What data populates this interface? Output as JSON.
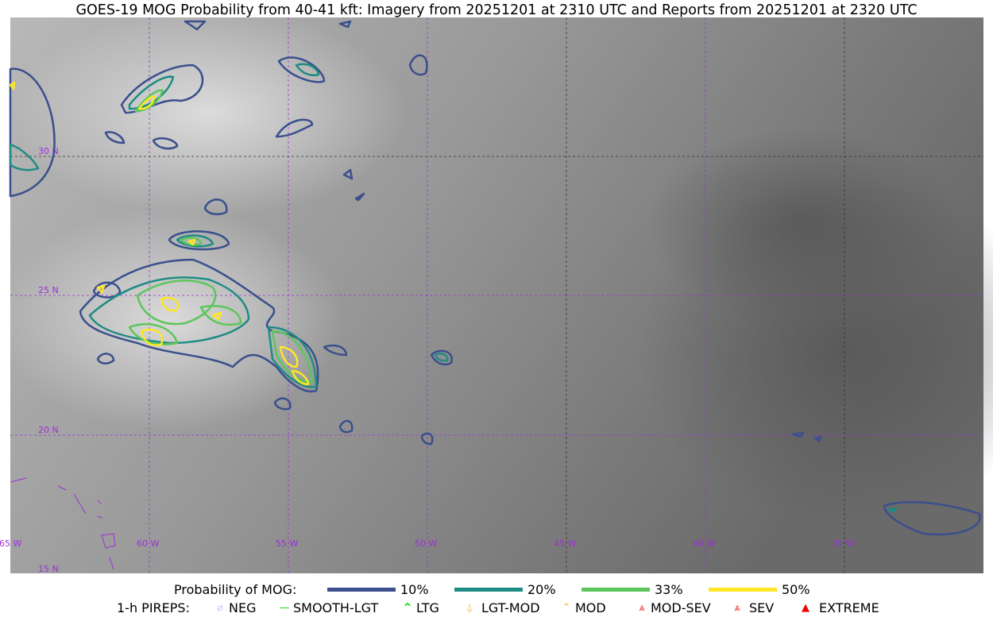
{
  "title": "GOES-19 MOG Probability from 40-41 kft: Imagery from 20251201 at 2310 UTC and Reports from 20251201 at 2320 UTC",
  "map": {
    "lat_labels": [
      "30 N",
      "25 N",
      "20 N",
      "15 N"
    ],
    "lon_labels": [
      "65 W",
      "60 W",
      "55 W",
      "50 W",
      "45 W",
      "40 W",
      "35 W"
    ],
    "grid_color": "#9b30d9"
  },
  "legend": {
    "prob_label": "Probability of MOG:",
    "prob_items": [
      {
        "label": "10%",
        "color": "#3a4f8c"
      },
      {
        "label": "20%",
        "color": "#1f8c84"
      },
      {
        "label": "33%",
        "color": "#5cc65c"
      },
      {
        "label": "50%",
        "color": "#fde725"
      }
    ],
    "pirep_label": "1-h PIREPS:",
    "pirep_items": [
      {
        "label": "NEG",
        "icon": "neg-circle-icon",
        "color": "#c8c8f0"
      },
      {
        "label": "SMOOTH-LGT",
        "icon": "line-icon",
        "color": "#00e000"
      },
      {
        "label": "LTG",
        "icon": "caret-icon",
        "color": "#00e000"
      },
      {
        "label": "LGT-MOD",
        "icon": "triangle-bar-icon",
        "color": "#f0b020"
      },
      {
        "label": "MOD",
        "icon": "caret-bar-icon",
        "color": "#f0b020"
      },
      {
        "label": "MOD-SEV",
        "icon": "double-caret-bar-icon",
        "color": "#f03030"
      },
      {
        "label": "SEV",
        "icon": "double-caret-icon",
        "color": "#f03030"
      },
      {
        "label": "EXTREME",
        "icon": "filled-triangle-icon",
        "color": "#f00000"
      }
    ]
  }
}
